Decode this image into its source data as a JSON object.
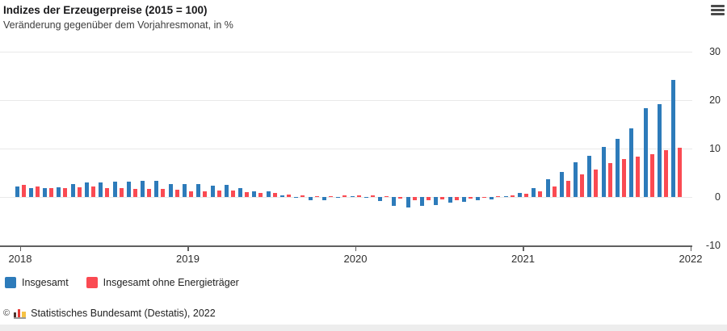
{
  "header": {
    "title": "Indizes der Erzeugerpreise (2015 = 100)",
    "subtitle": "Veränderung gegenüber dem Vorjahresmonat, in %",
    "menu_icon": "hamburger-menu-icon"
  },
  "footer": {
    "copyright_symbol": "©",
    "logo": "destatis-bar-logo",
    "text": "Statistisches Bundesamt (Destatis), 2022"
  },
  "chart_data": {
    "type": "bar",
    "title": "Indizes der Erzeugerpreise (2015 = 100)",
    "subtitle": "Veränderung gegenüber dem Vorjahresmonat, in %",
    "ylabel": "Veränderung in %",
    "xlabel": "",
    "ylim": [
      -10,
      30
    ],
    "yticks": [
      30,
      20,
      10,
      0,
      -10
    ],
    "xtick_labels": [
      "2018",
      "2019",
      "2020",
      "2021",
      "2022"
    ],
    "grid": true,
    "legend_position": "bottom-left",
    "categories": [
      "2018-01",
      "2018-02",
      "2018-03",
      "2018-04",
      "2018-05",
      "2018-06",
      "2018-07",
      "2018-08",
      "2018-09",
      "2018-10",
      "2018-11",
      "2018-12",
      "2019-01",
      "2019-02",
      "2019-03",
      "2019-04",
      "2019-05",
      "2019-06",
      "2019-07",
      "2019-08",
      "2019-09",
      "2019-10",
      "2019-11",
      "2019-12",
      "2020-01",
      "2020-02",
      "2020-03",
      "2020-04",
      "2020-05",
      "2020-06",
      "2020-07",
      "2020-08",
      "2020-09",
      "2020-10",
      "2020-11",
      "2020-12",
      "2021-01",
      "2021-02",
      "2021-03",
      "2021-04",
      "2021-05",
      "2021-06",
      "2021-07",
      "2021-08",
      "2021-09",
      "2021-10",
      "2021-11",
      "2021-12"
    ],
    "series": [
      {
        "name": "Insgesamt",
        "color": "#2d7bba",
        "values": [
          2.1,
          1.9,
          1.9,
          2.0,
          2.7,
          3.0,
          3.0,
          3.1,
          3.2,
          3.3,
          3.3,
          2.7,
          2.6,
          2.6,
          2.4,
          2.5,
          1.9,
          1.2,
          1.1,
          0.3,
          -0.1,
          -0.6,
          -0.7,
          -0.2,
          0.2,
          -0.1,
          -0.8,
          -1.9,
          -2.2,
          -1.8,
          -1.7,
          -1.2,
          -1.0,
          -0.7,
          -0.5,
          0.2,
          0.9,
          1.9,
          3.7,
          5.2,
          7.2,
          8.5,
          10.4,
          12.0,
          14.2,
          18.4,
          19.2,
          24.2
        ]
      },
      {
        "name": "Insgesamt ohne Energieträger",
        "color": "#fa4a52",
        "values": [
          2.5,
          2.1,
          1.9,
          1.9,
          2.0,
          2.2,
          1.8,
          1.8,
          1.7,
          1.6,
          1.7,
          1.5,
          1.2,
          1.2,
          1.3,
          1.3,
          1.0,
          0.9,
          0.8,
          0.5,
          0.4,
          0.2,
          0.2,
          0.3,
          0.4,
          0.3,
          0.1,
          -0.3,
          -0.6,
          -0.6,
          -0.5,
          -0.6,
          -0.4,
          -0.2,
          0.1,
          0.4,
          0.7,
          1.2,
          2.2,
          3.3,
          4.6,
          5.7,
          7.0,
          7.9,
          8.3,
          8.9,
          9.7,
          10.2
        ]
      }
    ]
  }
}
